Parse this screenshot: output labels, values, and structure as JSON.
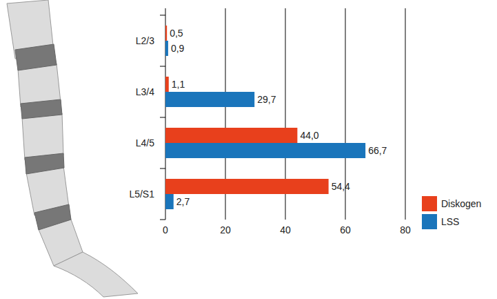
{
  "chart_data": {
    "type": "bar",
    "orientation": "horizontal",
    "categories": [
      "L2/3",
      "L3/4",
      "L4/5",
      "L5/S1"
    ],
    "series": [
      {
        "name": "Diskogen",
        "color": "#e8401c",
        "values": [
          0.5,
          1.1,
          44.0,
          54.4
        ],
        "value_labels": [
          "0,5",
          "1,1",
          "44,0",
          "54,4"
        ]
      },
      {
        "name": "LSS",
        "color": "#1a75bb",
        "values": [
          0.9,
          29.7,
          66.7,
          2.7
        ],
        "value_labels": [
          "0,9",
          "29,7",
          "66,7",
          "2,7"
        ]
      }
    ],
    "xlim": [
      0,
      80
    ],
    "xticks": [
      0,
      20,
      40,
      60,
      80
    ],
    "grid": true,
    "legend": "right",
    "data_labels": true
  }
}
